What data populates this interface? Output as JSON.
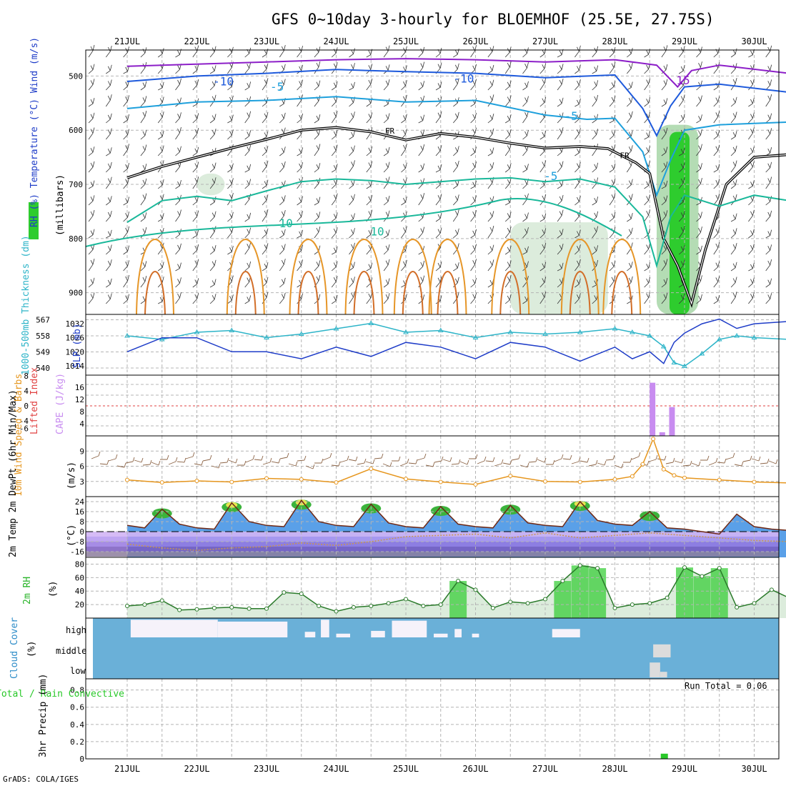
{
  "title": "GFS 0~10day 3-hourly for BLOEMHOF (25.5E, 27.75S)",
  "credit": "GrADS: COLA/IGES",
  "dates": [
    "21JUL",
    "22JUL",
    "23JUL",
    "24JUL",
    "25JUL",
    "26JUL",
    "27JUL",
    "28JUL",
    "29JUL",
    "30JUL"
  ],
  "colors": {
    "rh_green": "#2ecc2e",
    "contour_teal": "#1ab89a",
    "contour_blue": "#1e5adc",
    "contour_lightblue": "#1ea0dc",
    "contour_purple": "#8c1ec8",
    "contour_orange": "#e69628",
    "thickness": "#2db4c8",
    "slp": "#1e3cc8",
    "cape": "#c88cf0",
    "wind10": "#e6961e",
    "cloud": "#6ab0d8",
    "precip": "#28c828"
  },
  "chart_data": [
    {
      "panel": "upper-air",
      "type": "contour",
      "ylabel_left": "RH (%) Temperature (°C) Wind (m/s)",
      "ylabel_right": "(millibars)",
      "yticks": [
        500,
        600,
        700,
        800,
        900
      ],
      "contour_labels": [
        {
          "text": "15",
          "time": 7.98,
          "p": 515
        },
        {
          "text": "-10",
          "time": 1.38,
          "p": 517
        },
        {
          "text": "-5",
          "time": 2.15,
          "p": 527
        },
        {
          "text": "-10",
          "time": 4.83,
          "p": 512
        },
        {
          "text": "-5",
          "time": 6.37,
          "p": 581
        },
        {
          "text": "FR",
          "time": 3.77,
          "p": 606
        },
        {
          "text": "FR",
          "time": 7.14,
          "p": 652
        },
        {
          "text": "-5",
          "time": 6.08,
          "p": 692
        },
        {
          "text": "10",
          "time": 3.59,
          "p": 794
        },
        {
          "text": "10",
          "time": 2.28,
          "p": 779
        }
      ],
      "freezing_level": [
        {
          "t": 0,
          "p": 688
        },
        {
          "t": 0.5,
          "p": 667
        },
        {
          "t": 1,
          "p": 650
        },
        {
          "t": 1.5,
          "p": 633
        },
        {
          "t": 2,
          "p": 617
        },
        {
          "t": 2.5,
          "p": 600
        },
        {
          "t": 3,
          "p": 595
        },
        {
          "t": 3.5,
          "p": 603
        },
        {
          "t": 4,
          "p": 618
        },
        {
          "t": 4.5,
          "p": 606
        },
        {
          "t": 5,
          "p": 613
        },
        {
          "t": 5.5,
          "p": 624
        },
        {
          "t": 6,
          "p": 633
        },
        {
          "t": 6.5,
          "p": 630
        },
        {
          "t": 6.9,
          "p": 634
        },
        {
          "t": 7.3,
          "p": 660
        },
        {
          "t": 7.5,
          "p": 680
        },
        {
          "t": 7.7,
          "p": 800
        },
        {
          "t": 7.9,
          "p": 850
        },
        {
          "t": 8.1,
          "p": 920
        },
        {
          "t": 8.3,
          "p": 820
        },
        {
          "t": 8.6,
          "p": 700
        },
        {
          "t": 9,
          "p": 650
        },
        {
          "t": 9.5,
          "p": 645
        }
      ],
      "temp_minus5": [
        {
          "t": 0,
          "p": 560
        },
        {
          "t": 1,
          "p": 548
        },
        {
          "t": 2,
          "p": 545
        },
        {
          "t": 3,
          "p": 538
        },
        {
          "t": 4,
          "p": 548
        },
        {
          "t": 5,
          "p": 545
        },
        {
          "t": 6,
          "p": 572
        },
        {
          "t": 6.6,
          "p": 580
        },
        {
          "t": 7,
          "p": 578
        },
        {
          "t": 7.4,
          "p": 640
        },
        {
          "t": 7.6,
          "p": 720
        },
        {
          "t": 7.8,
          "p": 655
        },
        {
          "t": 8,
          "p": 600
        },
        {
          "t": 8.5,
          "p": 590
        },
        {
          "t": 9.5,
          "p": 585
        }
      ],
      "temp_minus10": [
        {
          "t": 0,
          "p": 510
        },
        {
          "t": 1,
          "p": 500
        },
        {
          "t": 2,
          "p": 495
        },
        {
          "t": 3,
          "p": 488
        },
        {
          "t": 4,
          "p": 492
        },
        {
          "t": 5,
          "p": 495
        },
        {
          "t": 6,
          "p": 503
        },
        {
          "t": 7,
          "p": 498
        },
        {
          "t": 7.4,
          "p": 560
        },
        {
          "t": 7.6,
          "p": 610
        },
        {
          "t": 7.8,
          "p": 555
        },
        {
          "t": 8,
          "p": 520
        },
        {
          "t": 8.5,
          "p": 515
        },
        {
          "t": 9.5,
          "p": 530
        }
      ],
      "temp_minus15": [
        {
          "t": 0,
          "p": 482
        },
        {
          "t": 1,
          "p": 478
        },
        {
          "t": 2,
          "p": 474
        },
        {
          "t": 3,
          "p": 470
        },
        {
          "t": 4,
          "p": 468
        },
        {
          "t": 5,
          "p": 470
        },
        {
          "t": 6,
          "p": 474
        },
        {
          "t": 7,
          "p": 470
        },
        {
          "t": 7.6,
          "p": 480
        },
        {
          "t": 7.9,
          "p": 520
        },
        {
          "t": 8.1,
          "p": 490
        },
        {
          "t": 8.5,
          "p": 480
        },
        {
          "t": 9.5,
          "p": 495
        }
      ],
      "temp_plus5": [
        {
          "t": 0,
          "p": 770
        },
        {
          "t": 0.5,
          "p": 730
        },
        {
          "t": 1,
          "p": 722
        },
        {
          "t": 1.5,
          "p": 730
        },
        {
          "t": 2,
          "p": 712
        },
        {
          "t": 2.5,
          "p": 695
        },
        {
          "t": 3,
          "p": 690
        },
        {
          "t": 3.5,
          "p": 693
        },
        {
          "t": 4,
          "p": 700
        },
        {
          "t": 4.5,
          "p": 695
        },
        {
          "t": 5,
          "p": 690
        },
        {
          "t": 5.5,
          "p": 688
        },
        {
          "t": 6,
          "p": 695
        },
        {
          "t": 6.5,
          "p": 690
        },
        {
          "t": 7,
          "p": 705
        },
        {
          "t": 7.4,
          "p": 760
        },
        {
          "t": 7.6,
          "p": 850
        },
        {
          "t": 7.8,
          "p": 760
        },
        {
          "t": 8,
          "p": 720
        },
        {
          "t": 8.5,
          "p": 740
        },
        {
          "t": 9,
          "p": 720
        },
        {
          "t": 9.5,
          "p": 730
        }
      ],
      "rh_shade": [
        {
          "t0": 7.6,
          "t1": 8.2,
          "p0": 590,
          "p1": 940,
          "level": "high"
        },
        {
          "t0": 5.5,
          "t1": 6.9,
          "p0": 770,
          "p1": 940,
          "level": "low"
        },
        {
          "t0": 1.0,
          "t1": 1.4,
          "p0": 680,
          "p1": 720,
          "level": "low"
        }
      ]
    },
    {
      "panel": "thickness-slp",
      "type": "line",
      "ylabel_left": "1000-500mb Thickness (dm)",
      "ylabel_right": "SLP (mb)",
      "yticks_left": [
        540,
        549,
        558,
        567
      ],
      "yticks_right": [
        1014,
        1020,
        1026,
        1032
      ],
      "series": [
        {
          "name": "1000-500mb Thickness",
          "x": [
            0,
            0.5,
            1,
            1.5,
            2,
            2.5,
            3,
            3.5,
            4,
            4.5,
            5,
            5.5,
            6,
            6.5,
            7,
            7.25,
            7.5,
            7.7,
            7.85,
            8.0,
            8.25,
            8.5,
            8.75,
            9,
            9.5
          ],
          "values": [
            558,
            556,
            560,
            561,
            557,
            559,
            562,
            565,
            560,
            561,
            557,
            560,
            559,
            560,
            562,
            560,
            558,
            552,
            543,
            541,
            548,
            556,
            558,
            557,
            556
          ]
        },
        {
          "name": "SLP",
          "x": [
            0,
            0.5,
            1,
            1.5,
            2,
            2.5,
            3,
            3.5,
            4,
            4.5,
            5,
            5.5,
            6,
            6.5,
            7,
            7.25,
            7.5,
            7.7,
            7.85,
            8.0,
            8.25,
            8.5,
            8.75,
            9,
            9.5
          ],
          "values": [
            1020,
            1026,
            1026,
            1020,
            1020,
            1017,
            1022,
            1018,
            1024,
            1022,
            1017,
            1024,
            1022,
            1016,
            1022,
            1017,
            1020,
            1015,
            1024,
            1028,
            1032,
            1034,
            1030,
            1032,
            1033
          ]
        }
      ]
    },
    {
      "panel": "instability",
      "type": "bar",
      "ylabel_left": "Lifted Index",
      "ylabel_right": "CAPE (J/kg)",
      "yticks_left": [
        8,
        4,
        0,
        -4,
        -6
      ],
      "yticks_right": [
        4,
        8,
        12,
        16
      ],
      "cape": [
        {
          "t": 7.54,
          "v": 17.5
        },
        {
          "t": 7.68,
          "v": 1.2
        },
        {
          "t": 7.82,
          "v": 9.5
        }
      ]
    },
    {
      "panel": "wind10m",
      "type": "line",
      "ylabel_left": "10m Wind Speed & Barbs",
      "ylabel_right": "(m/s)",
      "yticks": [
        3,
        6,
        9
      ],
      "series": [
        {
          "name": "10m Wind Speed",
          "x": [
            0,
            0.5,
            1,
            1.5,
            2,
            2.5,
            3,
            3.5,
            4,
            4.5,
            5,
            5.5,
            6,
            6.5,
            7,
            7.25,
            7.4,
            7.55,
            7.7,
            7.85,
            8.0,
            8.5,
            9,
            9.5
          ],
          "values": [
            3.3,
            2.8,
            3.1,
            2.9,
            3.6,
            3.4,
            2.8,
            5.5,
            3.5,
            2.9,
            2.4,
            4.1,
            3.0,
            2.9,
            3.4,
            4.0,
            6.4,
            11.4,
            5.4,
            4.2,
            3.7,
            3.3,
            2.9,
            2.7
          ]
        }
      ]
    },
    {
      "panel": "temperature",
      "type": "area",
      "ylabel_left": "2m Temp 2m DewPt (6hr Min/Max)",
      "ylabel_right": "(°C)",
      "yticks": [
        24,
        16,
        8,
        0,
        -8,
        -16
      ],
      "series": [
        {
          "name": "2m Temp",
          "x": [
            0,
            0.25,
            0.5,
            0.75,
            1,
            1.25,
            1.5,
            1.75,
            2,
            2.25,
            2.5,
            2.75,
            3,
            3.25,
            3.5,
            3.75,
            4,
            4.25,
            4.5,
            4.75,
            5,
            5.25,
            5.5,
            5.75,
            6,
            6.25,
            6.5,
            6.75,
            7,
            7.25,
            7.5,
            7.75,
            8,
            8.25,
            8.5,
            8.75,
            9,
            9.25,
            9.5
          ],
          "values": [
            5,
            3,
            18,
            6,
            3,
            2,
            23,
            8,
            5,
            4,
            25,
            8,
            5,
            4,
            22,
            7,
            4,
            3,
            20,
            6,
            4,
            3,
            21,
            7,
            5,
            4,
            24,
            9,
            6,
            5,
            16,
            3,
            2,
            0,
            -2,
            14,
            4,
            2,
            1
          ]
        },
        {
          "name": "2m DewPt",
          "x": [
            0,
            0.5,
            1,
            1.5,
            2,
            2.5,
            3,
            3.5,
            4,
            4.5,
            5,
            5.5,
            6,
            6.5,
            7,
            7.5,
            8,
            8.5,
            9,
            9.5
          ],
          "values": [
            -10,
            -13,
            -15,
            -13,
            -12,
            -9,
            -11,
            -8,
            -4,
            -3,
            -2,
            -5,
            -1,
            -5,
            -3,
            -1,
            -3,
            -5,
            -7,
            -8
          ]
        }
      ]
    },
    {
      "panel": "humidity",
      "type": "area",
      "ylabel_left": "2m RH",
      "ylabel_right": "(%)",
      "yticks": [
        20,
        40,
        60,
        80
      ],
      "series": [
        {
          "name": "2m RH",
          "x": [
            0,
            0.25,
            0.5,
            0.75,
            1,
            1.25,
            1.5,
            1.75,
            2,
            2.25,
            2.5,
            2.75,
            3,
            3.25,
            3.5,
            3.75,
            4,
            4.25,
            4.5,
            4.75,
            5,
            5.25,
            5.5,
            5.75,
            6,
            6.25,
            6.5,
            6.75,
            7,
            7.25,
            7.5,
            7.75,
            8,
            8.25,
            8.5,
            8.75,
            9,
            9.25,
            9.5
          ],
          "values": [
            18,
            20,
            26,
            12,
            13,
            15,
            16,
            14,
            14,
            38,
            36,
            18,
            10,
            16,
            18,
            22,
            28,
            18,
            20,
            55,
            42,
            15,
            24,
            22,
            28,
            55,
            78,
            74,
            15,
            20,
            22,
            30,
            75,
            62,
            74,
            16,
            22,
            42,
            30
          ]
        }
      ]
    },
    {
      "panel": "cloud-cover",
      "type": "bar",
      "ylabel_left": "Cloud Cover",
      "ylabel_right": "(%)",
      "levels": [
        "high",
        "middle",
        "low"
      ],
      "high": [
        {
          "t0": 0.05,
          "t1": 1.3,
          "v": 0.95
        },
        {
          "t0": 1.3,
          "t1": 2.3,
          "v": 0.85
        },
        {
          "t0": 2.55,
          "t1": 2.7,
          "v": 0.3
        },
        {
          "t0": 2.78,
          "t1": 2.9,
          "v": 0.95
        },
        {
          "t0": 3.0,
          "t1": 3.2,
          "v": 0.2
        },
        {
          "t0": 3.5,
          "t1": 3.7,
          "v": 0.35
        },
        {
          "t0": 3.8,
          "t1": 4.3,
          "v": 0.9
        },
        {
          "t0": 4.4,
          "t1": 4.6,
          "v": 0.2
        },
        {
          "t0": 4.7,
          "t1": 4.8,
          "v": 0.45
        },
        {
          "t0": 4.95,
          "t1": 5.05,
          "v": 0.2
        },
        {
          "t0": 6.1,
          "t1": 6.5,
          "v": 0.45
        }
      ],
      "middle": [
        {
          "t0": 7.55,
          "t1": 7.8,
          "v": 0.7
        }
      ],
      "low": [
        {
          "t0": 7.5,
          "t1": 7.65,
          "v": 0.8
        },
        {
          "t0": 7.65,
          "t1": 7.75,
          "v": 0.3
        }
      ]
    },
    {
      "panel": "precip",
      "type": "bar",
      "ylabel_left": "Total / Rain Convective",
      "ylabel_right": "3hr Precip (mm)",
      "yticks": [
        0,
        0.2,
        0.4,
        0.6,
        0.8
      ],
      "run_total": "Run Total = 0.06",
      "bars": [
        {
          "t": 7.71,
          "v": 0.06
        }
      ]
    }
  ]
}
